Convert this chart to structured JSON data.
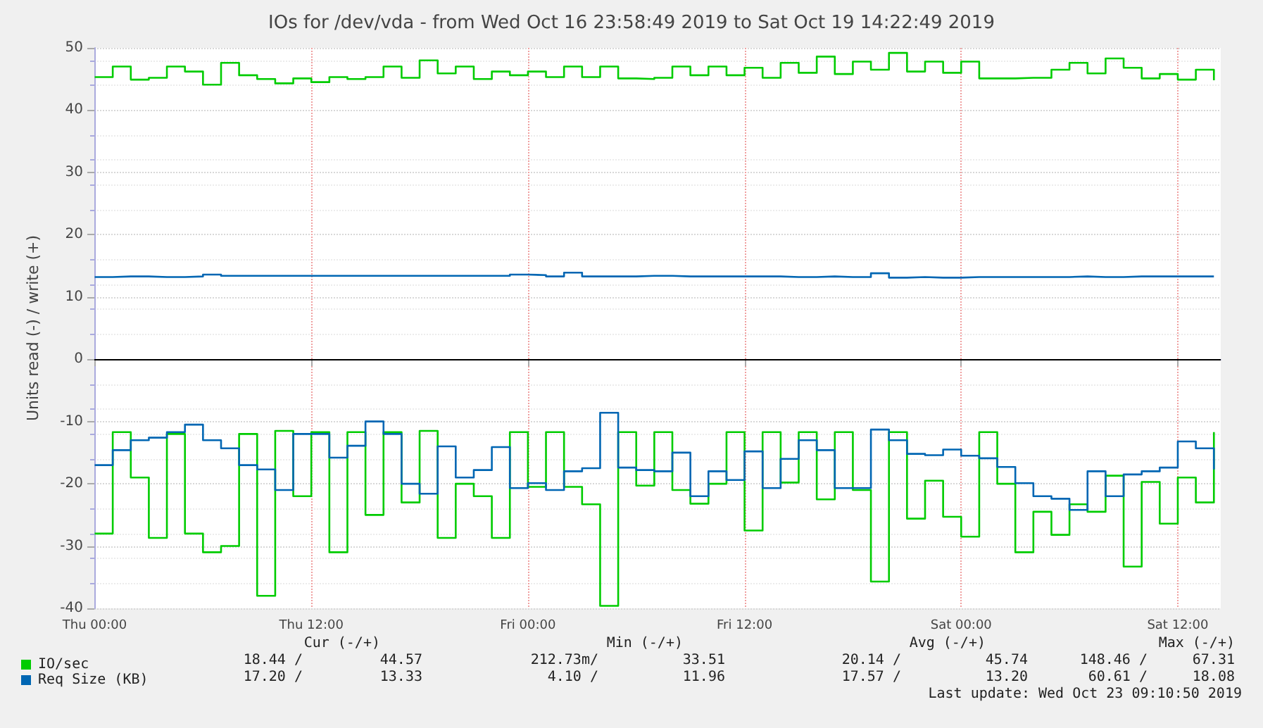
{
  "chart_data": {
    "type": "step",
    "title": "IOs for /dev/vda - from Wed Oct 16 23:58:49 2019 to Sat Oct 19 14:22:49 2019",
    "ylabel": "Units read (-) / write (+)",
    "x": [
      "2019-10-17T00:00",
      "2019-10-17T01:00",
      "2019-10-17T02:00",
      "2019-10-17T03:00",
      "2019-10-17T04:00",
      "2019-10-17T05:00",
      "2019-10-17T06:00",
      "2019-10-17T07:00",
      "2019-10-17T08:00",
      "2019-10-17T09:00",
      "2019-10-17T10:00",
      "2019-10-17T11:00",
      "2019-10-17T12:00",
      "2019-10-17T13:00",
      "2019-10-17T14:00",
      "2019-10-17T15:00",
      "2019-10-17T16:00",
      "2019-10-17T17:00",
      "2019-10-17T18:00",
      "2019-10-17T19:00",
      "2019-10-17T20:00",
      "2019-10-17T21:00",
      "2019-10-17T22:00",
      "2019-10-17T23:00",
      "2019-10-18T00:00",
      "2019-10-18T01:00",
      "2019-10-18T02:00",
      "2019-10-18T03:00",
      "2019-10-18T04:00",
      "2019-10-18T05:00",
      "2019-10-18T06:00",
      "2019-10-18T07:00",
      "2019-10-18T08:00",
      "2019-10-18T09:00",
      "2019-10-18T10:00",
      "2019-10-18T11:00",
      "2019-10-18T12:00",
      "2019-10-18T13:00",
      "2019-10-18T14:00",
      "2019-10-18T15:00",
      "2019-10-18T16:00",
      "2019-10-18T17:00",
      "2019-10-18T18:00",
      "2019-10-18T19:00",
      "2019-10-18T20:00",
      "2019-10-18T21:00",
      "2019-10-18T22:00",
      "2019-10-18T23:00",
      "2019-10-19T00:00",
      "2019-10-19T01:00",
      "2019-10-19T02:00",
      "2019-10-19T03:00",
      "2019-10-19T04:00",
      "2019-10-19T05:00",
      "2019-10-19T06:00",
      "2019-10-19T07:00",
      "2019-10-19T08:00",
      "2019-10-19T09:00",
      "2019-10-19T10:00",
      "2019-10-19T11:00",
      "2019-10-19T12:00",
      "2019-10-19T13:00",
      "2019-10-19T14:00"
    ],
    "series": [
      {
        "name": "IO/sec",
        "color": "#00cc00",
        "values": [
          45.3,
          47,
          44.9,
          45.2,
          47,
          46.2,
          44.1,
          47.6,
          45.6,
          45,
          44.3,
          45.1,
          44.5,
          45.3,
          45,
          45.3,
          47,
          45.2,
          48,
          45.9,
          47,
          45,
          46.2,
          45.6,
          46.2,
          45.3,
          47,
          45.3,
          47,
          45.1,
          45,
          45.2,
          47,
          45.6,
          47,
          45.6,
          46.8,
          45.2,
          47.6,
          46,
          48.6,
          45.8,
          47.8,
          46.5,
          49.2,
          46.2,
          47.8,
          46,
          47.8,
          45.1,
          45.1,
          45.2,
          45.2,
          46.5,
          47.6,
          45.9,
          48.3,
          46.8,
          45.1,
          45.8,
          44.9,
          46.5,
          44.8
        ]
      },
      {
        "color": "#00cc00",
        "values": [
          -28,
          -11.7,
          -19,
          -28.7,
          -12,
          -28,
          -31,
          -30,
          -12,
          -38,
          -11.5,
          -22,
          -11.7,
          -31,
          -11.7,
          -25,
          -11.7,
          -23,
          -11.5,
          -28.7,
          -20,
          -22,
          -28.7,
          -11.7,
          -20.5,
          -11.7,
          -20.5,
          -23.3,
          -39.6,
          -11.7,
          -20.3,
          -11.7,
          -21,
          -23.2,
          -20,
          -11.7,
          -27.5,
          -11.7,
          -19.8,
          -11.7,
          -22.5,
          -11.7,
          -21,
          -35.7,
          -11.7,
          -25.6,
          -19.5,
          -25.3,
          -28.5,
          -11.7,
          -20,
          -31,
          -24.5,
          -28.2,
          -23.3,
          -24.5,
          -18.7,
          -33.3,
          -19.7,
          -26.4,
          -19,
          -23,
          -11.7
        ]
      },
      {
        "name": "Req Size (KB)",
        "color": "#0066b3",
        "values": [
          13.2,
          13.3,
          13.3,
          13.2,
          13.2,
          13.3,
          13.6,
          13.4,
          13.4,
          13.4,
          13.4,
          13.4,
          13.4,
          13.4,
          13.4,
          13.4,
          13.4,
          13.4,
          13.4,
          13.4,
          13.4,
          13.4,
          13.4,
          13.6,
          13.5,
          13.3,
          13.9,
          13.3,
          13.3,
          13.3,
          13.4,
          13.4,
          13.3,
          13.3,
          13.3,
          13.3,
          13.3,
          13.3,
          13.2,
          13.2,
          13.3,
          13.2,
          13.2,
          13.8,
          13.1,
          13.2,
          13.1,
          13.1,
          13.2,
          13.2,
          13.2,
          13.2,
          13.2,
          13.2,
          13.3,
          13.2,
          13.2,
          13.3,
          13.3,
          13.3,
          13.3,
          13.3,
          13.3
        ]
      },
      {
        "color": "#0066b3",
        "values": [
          -17,
          -14.6,
          -13,
          -12.6,
          -11.7,
          -10.5,
          -13,
          -14.3,
          -17,
          -17.7,
          -21,
          -12,
          -12,
          -15.8,
          -13.9,
          -10,
          -12,
          -20,
          -21.6,
          -14,
          -19,
          -17.8,
          -14.1,
          -20.7,
          -19.9,
          -21,
          -18,
          -17.5,
          -8.6,
          -17.4,
          -17.8,
          -18,
          -15,
          -22,
          -18,
          -19.4,
          -14.8,
          -20.7,
          -16,
          -13,
          -14.6,
          -20.7,
          -20.7,
          -11.3,
          -13,
          -15.2,
          -15.4,
          -14.5,
          -15.5,
          -15.9,
          -17.3,
          -19.9,
          -22,
          -22.4,
          -24.2,
          -18,
          -22,
          -18.5,
          -18,
          -17.4,
          -13.2,
          -14.3,
          -17.7
        ]
      }
    ],
    "xlim": [
      "2019-10-16T23:58:49",
      "2019-10-19T14:22:49"
    ],
    "xticks": [
      {
        "value": "2019-10-17T00:00",
        "label": "Thu 00:00"
      },
      {
        "value": "2019-10-17T12:00",
        "label": "Thu 12:00"
      },
      {
        "value": "2019-10-18T00:00",
        "label": "Fri 00:00"
      },
      {
        "value": "2019-10-18T12:00",
        "label": "Fri 12:00"
      },
      {
        "value": "2019-10-19T00:00",
        "label": "Sat 00:00"
      },
      {
        "value": "2019-10-19T12:00",
        "label": "Sat 12:00"
      }
    ],
    "ylim": [
      -40,
      50
    ],
    "yticks": [
      -40,
      -30,
      -20,
      -10,
      0,
      10,
      20,
      30,
      40,
      50
    ],
    "ref_lines": [
      {
        "axis": "y",
        "value": 0,
        "color": "#000000"
      }
    ],
    "grid": true,
    "legend": "bottom left",
    "annotations": [
      "Cur (-/+)",
      "Min (-/+)",
      "Avg (-/+)",
      "Max (-/+)",
      "18.44 /",
      "44.57",
      "212.73m/",
      "33.51",
      "20.14 /",
      "45.74",
      "148.46 /",
      "67.31",
      "17.20 /",
      "13.33",
      "4.10 /",
      "11.96",
      "17.57 /",
      "13.20",
      "60.61 /",
      "18.08",
      "Last update: Wed Oct 23 09:10:50 2019"
    ]
  }
}
